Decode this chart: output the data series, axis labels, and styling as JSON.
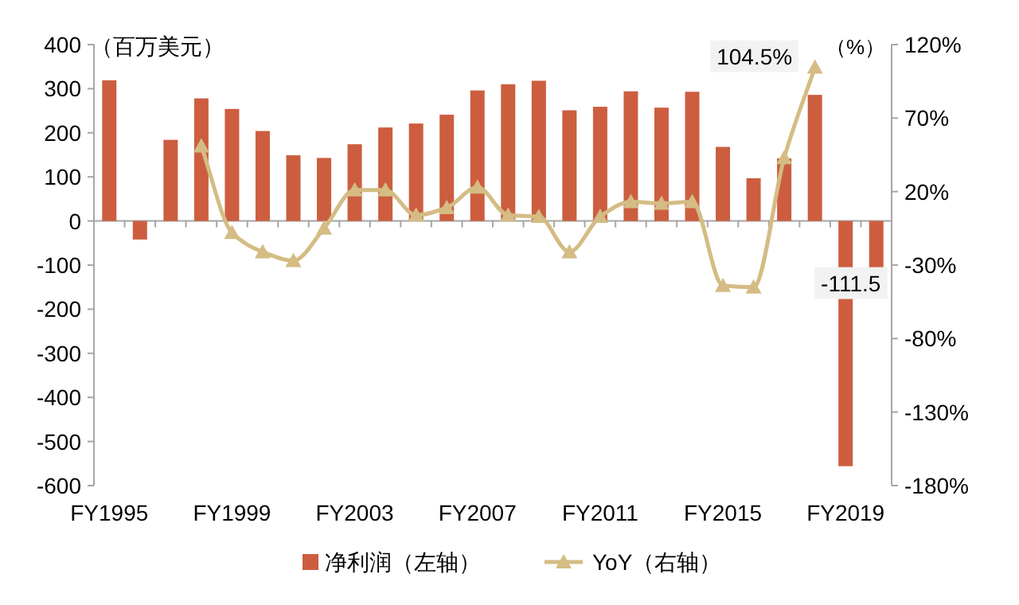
{
  "chart_data": {
    "type": "bar",
    "categories": [
      "FY1995",
      null,
      null,
      null,
      "FY1999",
      null,
      null,
      null,
      "FY2003",
      null,
      null,
      null,
      "FY2007",
      null,
      null,
      null,
      "FY2011",
      null,
      null,
      null,
      "FY2015",
      null,
      null,
      null,
      "FY2019",
      null
    ],
    "ylabel": "（百万美元）",
    "y2label": "（%）",
    "series": [
      {
        "name": "净利润（左轴）",
        "color": "#cc5e3f",
        "values": [
          319,
          -42,
          184,
          278,
          254,
          204,
          149,
          143,
          174,
          212,
          221,
          241,
          296,
          310,
          318,
          251,
          259,
          294,
          257,
          293,
          168,
          97,
          142,
          286,
          -556,
          -111.5
        ],
        "value_labels": [
          null,
          null,
          null,
          null,
          null,
          null,
          null,
          null,
          null,
          null,
          null,
          null,
          null,
          null,
          null,
          null,
          null,
          null,
          null,
          null,
          null,
          null,
          null,
          null,
          null,
          "-111.5"
        ]
      },
      {
        "name": "YoY（右轴）",
        "type": "line",
        "axis": "y2",
        "color": "#d4bc84",
        "marker": "triangle",
        "values": [
          null,
          null,
          null,
          51,
          -8,
          -21,
          -27,
          -5,
          21,
          21,
          4,
          9,
          23,
          4,
          3,
          -21,
          3,
          13,
          12,
          13,
          -44,
          -45,
          43,
          104.5,
          null,
          null
        ],
        "value_labels": [
          null,
          null,
          null,
          null,
          null,
          null,
          null,
          null,
          null,
          null,
          null,
          null,
          null,
          null,
          null,
          null,
          null,
          null,
          null,
          null,
          null,
          null,
          null,
          "104.5%",
          null,
          null
        ]
      }
    ],
    "ylim": [
      -600,
      400
    ],
    "yticks": [
      -600,
      -500,
      -400,
      -300,
      -200,
      -100,
      0,
      100,
      200,
      300,
      400
    ],
    "y2lim": [
      -180,
      120
    ],
    "y2ticks": [
      {
        "value": -180,
        "label": "-180%"
      },
      {
        "value": -130,
        "label": "-130%"
      },
      {
        "value": -80,
        "label": "-80%"
      },
      {
        "value": -30,
        "label": "-30%"
      },
      {
        "value": 20,
        "label": "20%"
      },
      {
        "value": 70,
        "label": "70%"
      },
      {
        "value": 120,
        "label": "120%"
      }
    ],
    "legend": "bottom"
  }
}
